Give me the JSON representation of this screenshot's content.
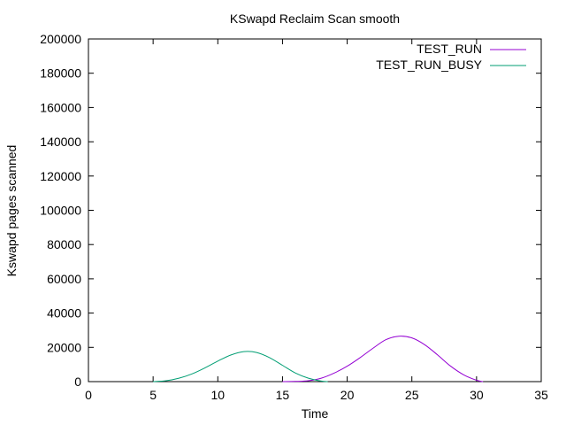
{
  "chart_data": {
    "type": "line",
    "title": "KSwapd Reclaim Scan smooth",
    "xlabel": "Time",
    "ylabel": "Kswapd pages scanned",
    "xlim": [
      0,
      35
    ],
    "ylim": [
      0,
      200000
    ],
    "x_ticks": [
      "0",
      "5",
      "10",
      "15",
      "20",
      "25",
      "30",
      "35"
    ],
    "y_ticks": [
      "0",
      "20000",
      "40000",
      "60000",
      "80000",
      "100000",
      "120000",
      "140000",
      "160000",
      "180000",
      "200000"
    ],
    "grid": false,
    "legend_position": "top-right",
    "series": [
      {
        "name": "TEST_RUN",
        "color": "#9400d3",
        "x": [
          15,
          16,
          17,
          18,
          19,
          20,
          21,
          22,
          23,
          24,
          25,
          26,
          27,
          28,
          29,
          30,
          30.5
        ],
        "y": [
          0,
          100,
          500,
          2000,
          5000,
          9000,
          14000,
          19500,
          24500,
          26500,
          25500,
          21500,
          15500,
          9000,
          4000,
          800,
          0
        ]
      },
      {
        "name": "TEST_RUN_BUSY",
        "color": "#009e73",
        "x": [
          5,
          6,
          7,
          8,
          9,
          10,
          11,
          12,
          13,
          14,
          15,
          16,
          17,
          18,
          18.5
        ],
        "y": [
          0,
          500,
          2000,
          4500,
          8000,
          12000,
          15500,
          17500,
          17000,
          14000,
          9500,
          5000,
          2000,
          300,
          0
        ]
      }
    ]
  }
}
